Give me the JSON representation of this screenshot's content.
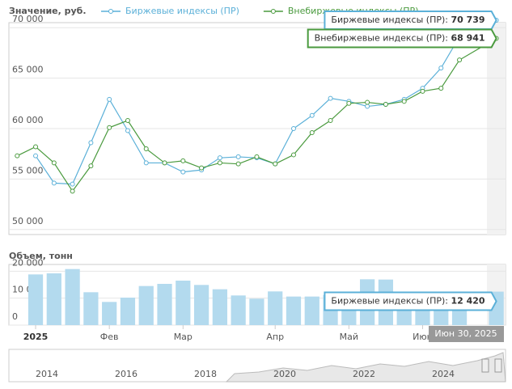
{
  "chart_data": [
    {
      "type": "line",
      "title": "Значение, руб.",
      "x": [
        0,
        1,
        2,
        3,
        4,
        5,
        6,
        7,
        8,
        9,
        10,
        11,
        12,
        13,
        14,
        15,
        16,
        17,
        18,
        19,
        20,
        21,
        22,
        23,
        24,
        26
      ],
      "series": [
        {
          "name": "Биржевые индексы (ПР)",
          "color": "#5bb0d8",
          "values": [
            null,
            57300,
            54600,
            54500,
            58600,
            62900,
            59800,
            56600,
            56600,
            55700,
            55900,
            57100,
            57200,
            57100,
            56500,
            60000,
            61300,
            63000,
            62700,
            62200,
            62400,
            62900,
            64000,
            66000,
            69100,
            70739
          ],
          "value_labels": [
            null,
            null,
            null,
            null,
            null,
            null,
            null,
            null,
            null,
            null,
            null,
            null,
            null,
            null,
            null,
            null,
            null,
            null,
            null,
            null,
            null,
            null,
            null,
            null,
            null,
            "70 739"
          ]
        },
        {
          "name": "Внебиржевые индексы (ПР)",
          "color": "#4a9a3e",
          "values": [
            57300,
            58200,
            56600,
            53800,
            56300,
            60100,
            60800,
            58000,
            56600,
            56800,
            56100,
            56600,
            56500,
            57200,
            56500,
            57400,
            59600,
            60800,
            62500,
            62600,
            62400,
            62700,
            63700,
            64000,
            66800,
            68941
          ],
          "value_labels": [
            null,
            null,
            null,
            null,
            null,
            null,
            null,
            null,
            null,
            null,
            null,
            null,
            null,
            null,
            null,
            null,
            null,
            null,
            null,
            null,
            null,
            null,
            null,
            null,
            null,
            "68 941"
          ]
        }
      ],
      "tooltip_separator": ": ",
      "xlim": [
        -0.45,
        26.5
      ],
      "ylim": [
        49500,
        70500
      ],
      "yticks": [
        {
          "value": 50000,
          "label": "50 000"
        },
        {
          "value": 55000,
          "label": "55 000"
        },
        {
          "value": 60000,
          "label": "60 000"
        },
        {
          "value": 65000,
          "label": "65 000"
        },
        {
          "value": 70000,
          "label": "70 000"
        }
      ],
      "grid": true
    },
    {
      "type": "bar",
      "title": "Объем, тонн",
      "x": [
        1,
        2,
        3,
        4,
        5,
        6,
        7,
        8,
        9,
        10,
        11,
        12,
        13,
        14,
        15,
        16,
        17,
        18,
        19,
        20,
        21,
        22,
        23,
        24,
        26
      ],
      "series": [
        {
          "name": "Биржевые индексы (ПР)",
          "color": "#b3daee",
          "values": [
            18800,
            19200,
            20800,
            12200,
            8600,
            10200,
            14500,
            15300,
            16500,
            14900,
            13300,
            11000,
            9800,
            12500,
            10600,
            10600,
            11200,
            11800,
            17000,
            16900,
            12000,
            11500,
            11800,
            12000,
            12420
          ],
          "value_labels": [
            null,
            null,
            null,
            null,
            null,
            null,
            null,
            null,
            null,
            null,
            null,
            null,
            null,
            null,
            null,
            null,
            null,
            null,
            null,
            null,
            null,
            null,
            null,
            null,
            "12 420"
          ]
        }
      ],
      "tooltip_separator": ": ",
      "xlim": [
        -0.45,
        26.5
      ],
      "ylim": [
        0,
        22500
      ],
      "yticks": [
        0,
        {
          "value": 10000,
          "label": "10 000"
        },
        {
          "value": 20000,
          "label": "20 000"
        }
      ],
      "xticks": [
        {
          "value": 1,
          "label": "2025"
        },
        {
          "value": 5,
          "label": "Фев"
        },
        {
          "value": 9,
          "label": "Мар"
        },
        {
          "value": 14,
          "label": "Апр"
        },
        {
          "value": 18,
          "label": "Май"
        },
        {
          "value": 22,
          "label": "Июн"
        }
      ],
      "grid": true
    }
  ],
  "date_label": "Июн 30, 2025",
  "navigator": {
    "labels": [
      "2014",
      "2016",
      "2018",
      "2020",
      "2022",
      "2024"
    ]
  }
}
